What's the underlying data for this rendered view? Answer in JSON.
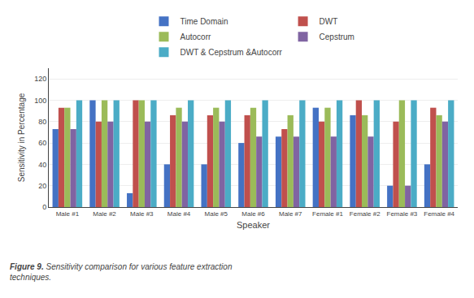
{
  "chart_data": {
    "type": "bar",
    "xlabel": "Speaker",
    "ylabel": "Sensitivity in Percentage",
    "annotations": [
      "Figure 9.",
      "Sensitivity comparison for various feature extraction\ntechniques."
    ],
    "categories": [
      "Male #1",
      "Male #2",
      "Male #3",
      "Male #4",
      "Male #5",
      "Male #6",
      "Male #7",
      "Female #1",
      "Female #2",
      "Female #3",
      "Female #4"
    ],
    "series": [
      {
        "name": "Time Domain",
        "color": "#4472C4",
        "values": [
          73,
          100,
          13,
          40,
          40,
          60,
          66,
          93,
          86,
          20,
          40
        ]
      },
      {
        "name": "DWT",
        "color": "#C0504D",
        "values": [
          93,
          80,
          100,
          86,
          86,
          86,
          73,
          80,
          100,
          80,
          93
        ]
      },
      {
        "name": "Autocorr",
        "color": "#9BBB59",
        "values": [
          93,
          100,
          100,
          93,
          93,
          93,
          86,
          93,
          86,
          100,
          86
        ]
      },
      {
        "name": "Cepstrum",
        "color": "#8064A2",
        "values": [
          73,
          80,
          80,
          80,
          80,
          66,
          66,
          66,
          66,
          20,
          80
        ]
      },
      {
        "name": "DWT & Cepstrum &Autocorr",
        "color": "#4BACC6",
        "values": [
          100,
          100,
          100,
          100,
          100,
          100,
          100,
          100,
          100,
          100,
          100
        ]
      }
    ],
    "ylim": [
      0,
      130
    ],
    "yticks": [
      0,
      20,
      40,
      60,
      80,
      100,
      120
    ],
    "grid": true,
    "legend": "top"
  }
}
